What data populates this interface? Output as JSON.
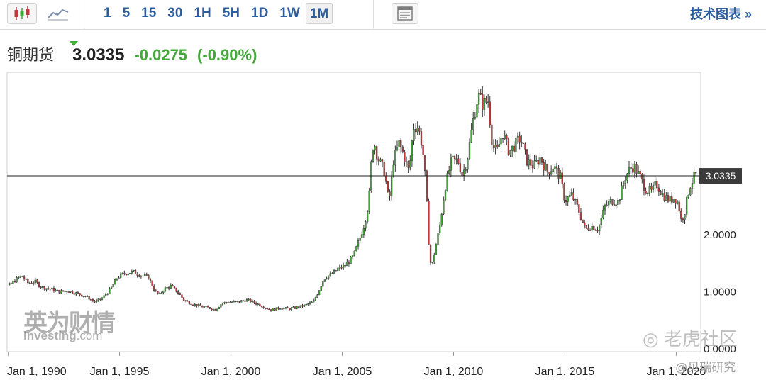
{
  "toolbar": {
    "intervals": [
      "1",
      "5",
      "15",
      "30",
      "1H",
      "5H",
      "1D",
      "1W",
      "1M"
    ],
    "active_interval": "1M",
    "tech_chart_link": "技术图表 »",
    "icons": {
      "candle": "candlestick-icon",
      "line": "line-chart-icon",
      "news": "news-panel-icon"
    }
  },
  "quote": {
    "name": "铜期货",
    "price": "3.0335",
    "change": "-0.0275",
    "change_pct": "(-0.90%)",
    "change_color": "#44a83a"
  },
  "watermarks": {
    "brand": "英为财情",
    "brand_sub_bold": "Investing",
    "brand_sub_light": ".com",
    "tiger": "老虎社区",
    "berry": "@贝瑞研究"
  },
  "chart_data": {
    "type": "candlestick",
    "x_tick_labels": [
      "Jan 1, 1990",
      "Jan 1, 1995",
      "Jan 1, 2000",
      "Jan 1, 2005",
      "Jan 1, 2010",
      "Jan 1, 2015",
      "Jan 1, 2020"
    ],
    "x_ticks": [
      1990,
      1995,
      2000,
      2005,
      2010,
      2015,
      2020
    ],
    "y_tick_labels": [
      "0.0000",
      "1.0000",
      "2.0000"
    ],
    "y_ticks": [
      0,
      1,
      2
    ],
    "ylim": [
      -0.05,
      4.85
    ],
    "xlim": [
      1989.95,
      2021.1
    ],
    "current_price": 3.0335,
    "current_price_label": "3.0335",
    "up_color": "#44a83a",
    "down_color": "#c0393d",
    "series_close": [
      [
        1989.05,
        1.35
      ],
      [
        1989.3,
        1.28
      ],
      [
        1989.6,
        1.2
      ],
      [
        1990.0,
        1.1
      ],
      [
        1990.3,
        1.2
      ],
      [
        1990.6,
        1.28
      ],
      [
        1990.9,
        1.15
      ],
      [
        1991.2,
        1.18
      ],
      [
        1991.5,
        1.08
      ],
      [
        1991.9,
        1.05
      ],
      [
        1992.3,
        1.0
      ],
      [
        1992.7,
        1.02
      ],
      [
        1993.0,
        0.98
      ],
      [
        1993.5,
        0.92
      ],
      [
        1993.9,
        0.82
      ],
      [
        1994.2,
        0.88
      ],
      [
        1994.6,
        1.05
      ],
      [
        1994.9,
        1.25
      ],
      [
        1995.2,
        1.32
      ],
      [
        1995.6,
        1.35
      ],
      [
        1995.9,
        1.3
      ],
      [
        1996.3,
        1.25
      ],
      [
        1996.6,
        1.0
      ],
      [
        1996.8,
        0.95
      ],
      [
        1997.0,
        1.05
      ],
      [
        1997.3,
        1.1
      ],
      [
        1997.6,
        1.0
      ],
      [
        1997.9,
        0.85
      ],
      [
        1998.3,
        0.78
      ],
      [
        1998.7,
        0.74
      ],
      [
        1999.0,
        0.72
      ],
      [
        1999.3,
        0.68
      ],
      [
        1999.6,
        0.8
      ],
      [
        1999.9,
        0.82
      ],
      [
        2000.3,
        0.82
      ],
      [
        2000.7,
        0.86
      ],
      [
        2001.0,
        0.82
      ],
      [
        2001.4,
        0.75
      ],
      [
        2001.8,
        0.68
      ],
      [
        2002.2,
        0.72
      ],
      [
        2002.6,
        0.7
      ],
      [
        2002.9,
        0.72
      ],
      [
        2003.3,
        0.76
      ],
      [
        2003.7,
        0.82
      ],
      [
        2003.9,
        0.98
      ],
      [
        2004.2,
        1.25
      ],
      [
        2004.5,
        1.3
      ],
      [
        2004.8,
        1.4
      ],
      [
        2005.1,
        1.45
      ],
      [
        2005.5,
        1.62
      ],
      [
        2005.8,
        1.95
      ],
      [
        2006.0,
        2.2
      ],
      [
        2006.2,
        2.6
      ],
      [
        2006.35,
        3.55
      ],
      [
        2006.45,
        3.6
      ],
      [
        2006.6,
        3.35
      ],
      [
        2006.9,
        3.1
      ],
      [
        2007.1,
        2.55
      ],
      [
        2007.3,
        3.3
      ],
      [
        2007.55,
        3.6
      ],
      [
        2007.8,
        3.35
      ],
      [
        2008.0,
        3.1
      ],
      [
        2008.2,
        3.9
      ],
      [
        2008.4,
        3.9
      ],
      [
        2008.6,
        3.55
      ],
      [
        2008.75,
        2.9
      ],
      [
        2008.9,
        1.75
      ],
      [
        2009.0,
        1.4
      ],
      [
        2009.2,
        1.8
      ],
      [
        2009.4,
        2.2
      ],
      [
        2009.6,
        2.8
      ],
      [
        2009.9,
        3.3
      ],
      [
        2010.2,
        3.3
      ],
      [
        2010.4,
        3.05
      ],
      [
        2010.6,
        3.3
      ],
      [
        2010.9,
        4.05
      ],
      [
        2011.1,
        4.45
      ],
      [
        2011.3,
        4.3
      ],
      [
        2011.55,
        4.35
      ],
      [
        2011.75,
        3.55
      ],
      [
        2011.95,
        3.45
      ],
      [
        2012.2,
        3.8
      ],
      [
        2012.5,
        3.45
      ],
      [
        2012.8,
        3.6
      ],
      [
        2013.0,
        3.7
      ],
      [
        2013.3,
        3.3
      ],
      [
        2013.6,
        3.2
      ],
      [
        2013.9,
        3.35
      ],
      [
        2014.2,
        3.1
      ],
      [
        2014.5,
        3.2
      ],
      [
        2014.8,
        3.0
      ],
      [
        2015.0,
        2.6
      ],
      [
        2015.3,
        2.7
      ],
      [
        2015.6,
        2.45
      ],
      [
        2015.9,
        2.1
      ],
      [
        2016.2,
        2.15
      ],
      [
        2016.5,
        2.1
      ],
      [
        2016.8,
        2.5
      ],
      [
        2017.1,
        2.6
      ],
      [
        2017.4,
        2.58
      ],
      [
        2017.7,
        3.0
      ],
      [
        2017.9,
        3.15
      ],
      [
        2018.1,
        3.2
      ],
      [
        2018.4,
        3.0
      ],
      [
        2018.6,
        2.8
      ],
      [
        2018.9,
        2.75
      ],
      [
        2019.1,
        2.9
      ],
      [
        2019.4,
        2.7
      ],
      [
        2019.7,
        2.6
      ],
      [
        2019.9,
        2.65
      ],
      [
        2020.1,
        2.55
      ],
      [
        2020.2,
        2.25
      ],
      [
        2020.35,
        2.35
      ],
      [
        2020.6,
        2.85
      ],
      [
        2020.85,
        3.05
      ],
      [
        2020.95,
        3.0335
      ]
    ]
  }
}
